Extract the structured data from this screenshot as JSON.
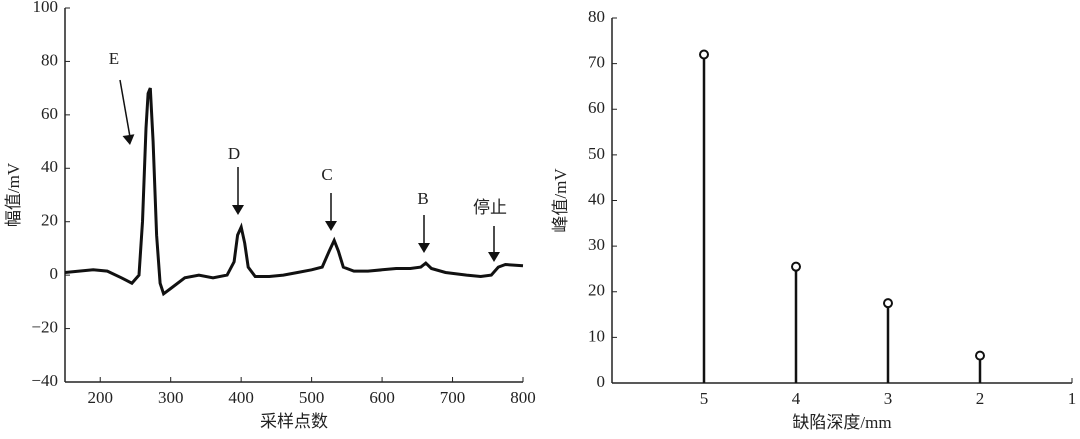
{
  "chart_data": [
    {
      "type": "line",
      "xlabel": "采样点数",
      "ylabel": "幅值/mV",
      "x": [
        150,
        170,
        190,
        210,
        230,
        245,
        255,
        260,
        265,
        268,
        271,
        275,
        280,
        285,
        290,
        300,
        320,
        340,
        360,
        380,
        390,
        395,
        400,
        405,
        410,
        420,
        440,
        460,
        480,
        500,
        515,
        525,
        532,
        538,
        545,
        560,
        580,
        600,
        620,
        640,
        655,
        662,
        670,
        690,
        720,
        740,
        755,
        765,
        775,
        800
      ],
      "values": [
        1,
        1.5,
        2,
        1.5,
        -1,
        -3,
        0,
        20,
        55,
        68,
        70,
        50,
        15,
        -3,
        -7,
        -5,
        -1,
        0,
        -1,
        0,
        5,
        15,
        18,
        12,
        3,
        -0.5,
        -0.5,
        0,
        1,
        2,
        3,
        9,
        13,
        9,
        3,
        1.5,
        1.5,
        2,
        2.5,
        2.5,
        3,
        4.5,
        2.5,
        1,
        0,
        -0.5,
        0,
        3,
        4,
        3.5
      ],
      "color": "#111111",
      "xlim": [
        150,
        800
      ],
      "ylim": [
        -40,
        100
      ],
      "xticks": [
        200,
        300,
        400,
        500,
        600,
        700,
        800
      ],
      "yticks": [
        {
          "value": -40,
          "label": "−40"
        },
        {
          "value": -20,
          "label": "−20"
        },
        0,
        20,
        40,
        60,
        80,
        100
      ],
      "annotations": [
        "E",
        "D",
        "C",
        "B",
        "停止"
      ]
    },
    {
      "type": "stem",
      "xlabel": "缺陷深度/mm",
      "ylabel": "峰值/mV",
      "x": [
        5,
        4,
        3,
        2
      ],
      "values": [
        72,
        25.5,
        17.5,
        6
      ],
      "color": "#111111",
      "xlim": [
        6,
        1
      ],
      "ylim": [
        0,
        80
      ],
      "xticks": [
        5,
        4,
        3,
        2,
        1
      ],
      "yticks": [
        0,
        10,
        20,
        30,
        40,
        50,
        60,
        70,
        80
      ]
    }
  ]
}
